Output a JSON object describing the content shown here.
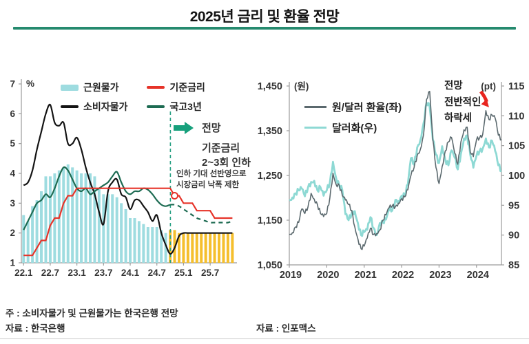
{
  "header": {
    "title": "2025년 금리 및 환율 전망"
  },
  "colors": {
    "accent_teal": "#258a6e",
    "forecast_arrow_green": "#17a07c",
    "dashed_boundary_green": "#27a083",
    "core_cpi_bar": "#9edce0",
    "core_cpi_forecast_bar": "#f5bf2d",
    "cpi_line": "#141414",
    "base_rate_line": "#e63329",
    "treasury_line": "#1d6b52",
    "usdkrw_line": "#5b696e",
    "dollar_index_line": "#8ed9d4",
    "decline_arrow_red": "#e8251f"
  },
  "left_chart": {
    "unit_label": "(%)",
    "legend": [
      {
        "label": "근원물가",
        "color": "#9edce0",
        "kind": "bar"
      },
      {
        "label": "기준금리",
        "color": "#e63329",
        "kind": "line"
      },
      {
        "label": "소비자물가",
        "color": "#141414",
        "kind": "line"
      },
      {
        "label": "국고3년",
        "color": "#1d6b52",
        "kind": "line"
      }
    ],
    "forecast_arrow_label": "전망",
    "forecast_note_lines": [
      "기준금리",
      "2~3회 인하"
    ],
    "rate_note_lines": [
      "인하 기대 선반영으로",
      "시장금리 낙폭 제한"
    ]
  },
  "right_chart": {
    "unit_left_label": "(원)",
    "unit_right_label": "(pt)",
    "legend": [
      {
        "label": "원/달러 환율(좌)",
        "color": "#5b696e"
      },
      {
        "label": "달러화(우)",
        "color": "#8ed9d4"
      }
    ],
    "annotation_lines": [
      "전망",
      "전반적인",
      "하락세"
    ]
  },
  "footnotes": {
    "note": "주 : 소비자물가 및 근원물가는 한국은행 전망",
    "source_left": "자료 : 한국은행",
    "source_right": "자료 : 인포맥스"
  },
  "chart_data": [
    {
      "type": "bar",
      "title": "금리 및 물가 (2022.1 ~ 2025.12, 월별, 2024.11부터 전망)",
      "unit": "%",
      "ylim": [
        1,
        7
      ],
      "y_ticks": [
        1,
        2,
        3,
        4,
        5,
        6,
        7
      ],
      "x_tick_labels": [
        "22.1",
        "22.7",
        "23.1",
        "23.7",
        "24.1",
        "24.7",
        "25.1",
        "25.7"
      ],
      "x_tick_indices": [
        0,
        6,
        12,
        18,
        24,
        30,
        36,
        42
      ],
      "forecast_start_index": 33,
      "bar_series": {
        "name": "근원물가",
        "color_actual": "#9edce0",
        "color_forecast": "#f5bf2d",
        "values": [
          2.6,
          2.4,
          2.9,
          3.1,
          3.4,
          3.9,
          3.9,
          4.0,
          4.1,
          4.2,
          4.3,
          4.2,
          4.1,
          4.0,
          4.0,
          4.0,
          3.9,
          3.5,
          3.3,
          3.3,
          3.3,
          3.2,
          3.0,
          2.8,
          2.5,
          2.5,
          2.4,
          2.3,
          2.2,
          2.2,
          2.2,
          2.1,
          2.0,
          2.1,
          2.1,
          2.0,
          2.0,
          2.0,
          2.0,
          2.0,
          2.0,
          2.0,
          2.0,
          2.0,
          2.0,
          2.0,
          2.0,
          2.0
        ]
      },
      "line_series": [
        {
          "name": "소비자물가",
          "color": "#141414",
          "style": "smooth",
          "width": 2.2,
          "values": [
            3.6,
            3.7,
            4.1,
            4.8,
            5.4,
            6.0,
            6.3,
            5.7,
            5.6,
            5.7,
            5.0,
            5.0,
            5.2,
            4.8,
            4.2,
            3.7,
            3.3,
            2.7,
            2.3,
            3.4,
            3.7,
            3.8,
            3.3,
            3.2,
            2.8,
            3.1,
            3.1,
            2.9,
            2.7,
            2.4,
            2.6,
            2.0,
            1.6,
            1.3,
            1.5,
            1.9,
            2.0,
            2.0,
            2.0,
            2.0,
            2.0,
            2.0,
            2.0,
            2.0,
            2.0,
            2.0,
            2.0,
            2.0
          ]
        },
        {
          "name": "국고3년",
          "color": "#1d6b52",
          "style": "smooth",
          "width": 2.2,
          "dashed_from": 33,
          "values": [
            2.1,
            2.4,
            2.7,
            3.0,
            3.1,
            3.3,
            3.2,
            3.5,
            3.9,
            4.2,
            4.1,
            3.8,
            3.5,
            3.4,
            3.5,
            3.3,
            3.4,
            3.5,
            3.6,
            3.7,
            3.9,
            4.05,
            3.7,
            3.4,
            3.3,
            3.4,
            3.4,
            3.5,
            3.45,
            3.3,
            3.1,
            2.95,
            2.9,
            2.95,
            2.95,
            2.9,
            2.8,
            2.7,
            2.6,
            2.5,
            2.45,
            2.4,
            2.35,
            2.35,
            2.35,
            2.35,
            2.35,
            2.4
          ]
        },
        {
          "name": "기준금리",
          "color": "#e63329",
          "style": "step",
          "width": 2.2,
          "marker": {
            "index": 34,
            "value": 3.25
          },
          "values": [
            1.25,
            1.25,
            1.25,
            1.5,
            1.75,
            1.75,
            2.25,
            2.5,
            2.5,
            3.0,
            3.25,
            3.25,
            3.5,
            3.5,
            3.5,
            3.5,
            3.5,
            3.5,
            3.5,
            3.5,
            3.5,
            3.5,
            3.5,
            3.5,
            3.5,
            3.5,
            3.5,
            3.5,
            3.5,
            3.5,
            3.5,
            3.5,
            3.5,
            3.5,
            3.25,
            3.25,
            3.0,
            3.0,
            3.0,
            2.75,
            2.75,
            2.75,
            2.75,
            2.5,
            2.5,
            2.5,
            2.5,
            2.5
          ]
        }
      ]
    },
    {
      "type": "line",
      "title": "원/달러 환율 및 달러화 지수 (2019.1 ~ 2024.9, 월별)",
      "unit_left": "원",
      "unit_right": "pt",
      "ylim_left": [
        1050,
        1450
      ],
      "ylim_right": [
        85,
        115
      ],
      "y_ticks_left": [
        1050,
        1150,
        1250,
        1350,
        1450
      ],
      "y_ticks_right": [
        85,
        90,
        95,
        100,
        105,
        110,
        115
      ],
      "x_tick_labels": [
        "2019",
        "2020",
        "2021",
        "2022",
        "2023",
        "2024"
      ],
      "x_tick_indices": [
        0,
        12,
        24,
        36,
        48,
        60
      ],
      "series": [
        {
          "name": "원/달러 환율(좌)",
          "axis": "left",
          "color": "#5b696e",
          "width": 1.6,
          "values": [
            1118,
            1122,
            1135,
            1145,
            1175,
            1165,
            1180,
            1210,
            1197,
            1185,
            1165,
            1158,
            1165,
            1200,
            1255,
            1230,
            1228,
            1205,
            1195,
            1185,
            1172,
            1135,
            1108,
            1086,
            1092,
            1110,
            1132,
            1118,
            1120,
            1128,
            1150,
            1162,
            1178,
            1182,
            1180,
            1188,
            1198,
            1202,
            1218,
            1250,
            1268,
            1295,
            1308,
            1340,
            1420,
            1438,
            1330,
            1268,
            1232,
            1270,
            1305,
            1325,
            1335,
            1300,
            1275,
            1325,
            1352,
            1358,
            1302,
            1292,
            1330,
            1334,
            1342,
            1395,
            1375,
            1385,
            1378,
            1340,
            1330
          ]
        },
        {
          "name": "달러화(우)",
          "axis": "right",
          "color": "#8ed9d4",
          "width": 2.8,
          "values": [
            95.8,
            96.3,
            97.0,
            97.5,
            97.8,
            96.5,
            98.0,
            98.9,
            99.1,
            97.5,
            98.0,
            96.6,
            97.5,
            98.8,
            102.3,
            99.6,
            98.4,
            97.5,
            93.5,
            92.5,
            93.7,
            94.0,
            92.0,
            90.0,
            90.5,
            90.9,
            93.0,
            91.2,
            90.0,
            92.0,
            92.1,
            92.6,
            94.2,
            94.1,
            95.9,
            95.7,
            96.6,
            96.7,
            98.5,
            102.9,
            101.8,
            104.7,
            105.9,
            108.7,
            112.2,
            111.5,
            106.0,
            103.5,
            102.1,
            104.9,
            102.6,
            101.7,
            104.2,
            103.0,
            101.0,
            103.6,
            106.2,
            106.7,
            103.5,
            101.3,
            103.3,
            104.1,
            104.5,
            106.2,
            104.7,
            105.8,
            104.1,
            101.7,
            100.8
          ]
        }
      ]
    }
  ]
}
